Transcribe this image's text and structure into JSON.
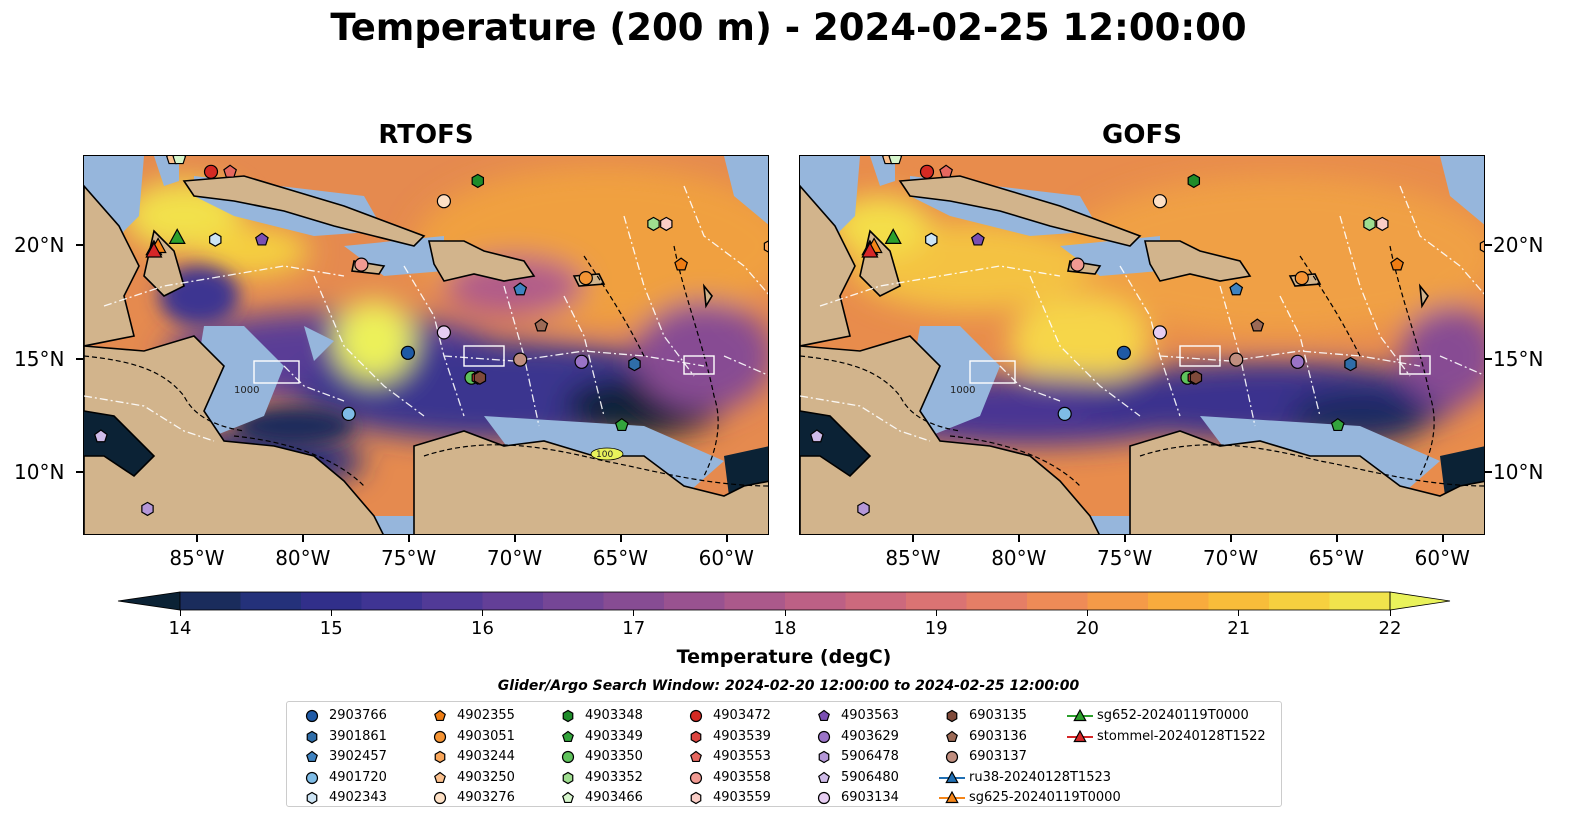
{
  "title": "Temperature (200 m) - 2024-02-25 12:00:00",
  "maps": [
    {
      "id": "rtofs",
      "title": "RTOFS"
    },
    {
      "id": "gofs",
      "title": "GOFS"
    }
  ],
  "lon_ticks": [
    "85°W",
    "80°W",
    "75°W",
    "70°W",
    "65°W",
    "60°W"
  ],
  "lat_ticks": [
    "20°N",
    "15°N",
    "10°N"
  ],
  "contour_labels": [
    "1000",
    "100"
  ],
  "colorbar": {
    "title": "Temperature (degC)",
    "ticks": [
      "14",
      "15",
      "16",
      "17",
      "18",
      "19",
      "20",
      "21",
      "22"
    ],
    "colors": [
      "#0b2235",
      "#1a2c5c",
      "#24317a",
      "#312f8a",
      "#3f3493",
      "#513a97",
      "#633f97",
      "#754696",
      "#874c93",
      "#995290",
      "#ab598b",
      "#bd6085",
      "#cc697d",
      "#da7373",
      "#e57e66",
      "#ee8b57",
      "#f59a48",
      "#f8ab3d",
      "#f8bd3a",
      "#f6d03f",
      "#f1e34c",
      "#e9f25b"
    ]
  },
  "legend": {
    "window_label": "Glider/Argo Search Window: 2024-02-20 12:00:00 to 2024-02-25 12:00:00",
    "items": [
      {
        "label": "2903766",
        "marker": "circle",
        "color": "#1f5aa6"
      },
      {
        "label": "3901861",
        "marker": "hexagon",
        "color": "#2f6da8"
      },
      {
        "label": "3902457",
        "marker": "pentagon",
        "color": "#3e82c0"
      },
      {
        "label": "4901720",
        "marker": "circle",
        "color": "#7fbce6"
      },
      {
        "label": "4902343",
        "marker": "hexagon",
        "color": "#cde4f4"
      },
      {
        "label": "4902355",
        "marker": "pentagon",
        "color": "#ee7d14"
      },
      {
        "label": "4903051",
        "marker": "circle",
        "color": "#f59434"
      },
      {
        "label": "4903244",
        "marker": "hexagon",
        "color": "#f9a65a"
      },
      {
        "label": "4903250",
        "marker": "pentagon",
        "color": "#fbc08d"
      },
      {
        "label": "4903276",
        "marker": "circle",
        "color": "#fde0c5"
      },
      {
        "label": "4903348",
        "marker": "hexagon",
        "color": "#1e8c2a"
      },
      {
        "label": "4903349",
        "marker": "pentagon",
        "color": "#33a43c"
      },
      {
        "label": "4903350",
        "marker": "circle",
        "color": "#5fc25c"
      },
      {
        "label": "4903352",
        "marker": "hexagon",
        "color": "#9fde90"
      },
      {
        "label": "4903466",
        "marker": "pentagon",
        "color": "#d6f5cc"
      },
      {
        "label": "4903472",
        "marker": "circle",
        "color": "#d42a23"
      },
      {
        "label": "4903539",
        "marker": "hexagon",
        "color": "#dd4540"
      },
      {
        "label": "4903553",
        "marker": "pentagon",
        "color": "#e6675f"
      },
      {
        "label": "4903558",
        "marker": "circle",
        "color": "#f19a92"
      },
      {
        "label": "4903559",
        "marker": "hexagon",
        "color": "#f9cdc6"
      },
      {
        "label": "4903563",
        "marker": "pentagon",
        "color": "#7a4fb2"
      },
      {
        "label": "4903629",
        "marker": "circle",
        "color": "#9a73c6"
      },
      {
        "label": "5906478",
        "marker": "hexagon",
        "color": "#b597d8"
      },
      {
        "label": "5906480",
        "marker": "pentagon",
        "color": "#cfbbe8"
      },
      {
        "label": "6903134",
        "marker": "circle",
        "color": "#e6cdf2"
      },
      {
        "label": "6903135",
        "marker": "hexagon",
        "color": "#7f4a3a"
      },
      {
        "label": "6903136",
        "marker": "pentagon",
        "color": "#9c6a56"
      },
      {
        "label": "6903137",
        "marker": "circle",
        "color": "#c08e7f"
      },
      {
        "label": "ru38-20240128T1523",
        "marker": "triangle-line",
        "color": "#1f6fb4"
      },
      {
        "label": "sg625-20240119T0000",
        "marker": "triangle-line",
        "color": "#f58518"
      },
      {
        "label": "sg652-20240119T0000",
        "marker": "triangle-line",
        "color": "#2ca02c"
      },
      {
        "label": "stommel-20240128T1522",
        "marker": "triangle-line",
        "color": "#d62728"
      }
    ]
  },
  "colors": {
    "land": "#d2b48c",
    "shelf": "#96b6dc",
    "deep_cold": "#0b2235"
  },
  "floats": [
    {
      "label": "2903766",
      "lon": -75.1,
      "lat": 15.3
    },
    {
      "label": "3901861",
      "lon": -64.4,
      "lat": 14.8
    },
    {
      "label": "3902457",
      "lon": -69.8,
      "lat": 18.1
    },
    {
      "label": "4901720",
      "lon": -77.9,
      "lat": 12.6
    },
    {
      "label": "4902343",
      "lon": -84.2,
      "lat": 20.3
    },
    {
      "label": "4902355",
      "lon": -62.2,
      "lat": 19.2
    },
    {
      "label": "4903051",
      "lon": -66.7,
      "lat": 18.6
    },
    {
      "label": "4903244",
      "lon": -58.0,
      "lat": 20.0
    },
    {
      "label": "4903250",
      "lon": -86.2,
      "lat": 23.9
    },
    {
      "label": "4903276",
      "lon": -73.4,
      "lat": 22.0
    },
    {
      "label": "4903348",
      "lon": -71.8,
      "lat": 22.9
    },
    {
      "label": "4903349",
      "lon": -65.0,
      "lat": 12.1
    },
    {
      "label": "4903350",
      "lon": -72.1,
      "lat": 14.2
    },
    {
      "label": "4903352",
      "lon": -63.5,
      "lat": 21.0
    },
    {
      "label": "4903466",
      "lon": -85.9,
      "lat": 23.9
    },
    {
      "label": "4903472",
      "lon": -84.4,
      "lat": 23.3
    },
    {
      "label": "4903539",
      "lon": -71.8,
      "lat": 14.2
    },
    {
      "label": "4903553",
      "lon": -83.5,
      "lat": 23.3
    },
    {
      "label": "4903558",
      "lon": -77.3,
      "lat": 19.2
    },
    {
      "label": "4903559",
      "lon": -62.9,
      "lat": 21.0
    },
    {
      "label": "4903563",
      "lon": -82.0,
      "lat": 20.3
    },
    {
      "label": "4903629",
      "lon": -66.9,
      "lat": 14.9
    },
    {
      "label": "5906478",
      "lon": -87.4,
      "lat": 8.4
    },
    {
      "label": "5906480",
      "lon": -89.6,
      "lat": 11.6
    },
    {
      "label": "6903134",
      "lon": -73.4,
      "lat": 16.2
    },
    {
      "label": "6903135",
      "lon": -71.7,
      "lat": 14.2
    },
    {
      "label": "6903136",
      "lon": -68.8,
      "lat": 16.5
    },
    {
      "label": "6903137",
      "lon": -69.8,
      "lat": 15.0
    }
  ],
  "gliders": [
    {
      "label": "ru38-20240128T1523",
      "lon": -87.1,
      "lat": 19.9
    },
    {
      "label": "sg625-20240119T0000",
      "lon": -86.9,
      "lat": 20.0
    },
    {
      "label": "sg652-20240119T0000",
      "lon": -86.0,
      "lat": 20.4
    },
    {
      "label": "stommel-20240128T1522",
      "lon": -87.1,
      "lat": 19.8
    }
  ]
}
